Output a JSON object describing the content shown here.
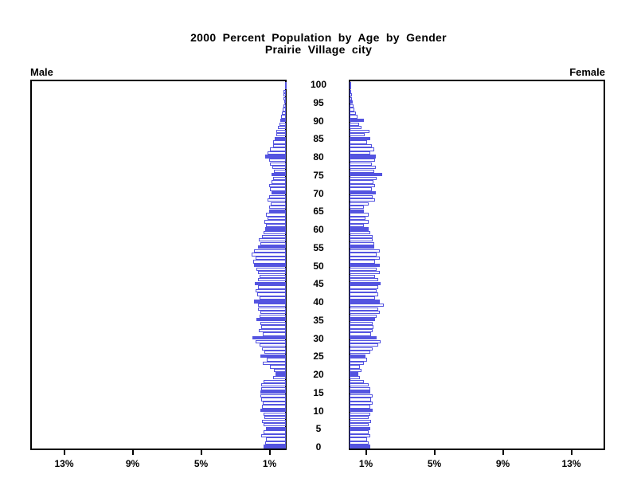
{
  "title": {
    "line1": "2000 Percent Population by Age by Gender",
    "line2": "Prairie Village city"
  },
  "labels": {
    "male": "Male",
    "female": "Female"
  },
  "colors": {
    "bar_blue": "#5454E0",
    "axis_black": "#000000",
    "background": "#FFFFFF"
  },
  "chart_data": {
    "type": "bar",
    "subtype": "population-pyramid",
    "title": "2000 Percent Population by Age by Gender",
    "subtitle": "Prairie Village city",
    "unit": "percent of total population, single-year age bins",
    "legend_position": "none",
    "grid": false,
    "style_note": "bars for ages divisible by 5 are solid blue; all other bars are white with blue outline; male bars grow leftward, female bars grow rightward",
    "age_axis": {
      "min": 0,
      "max": 100,
      "tick_interval": 5,
      "tick_labels": [
        0,
        5,
        10,
        15,
        20,
        25,
        30,
        35,
        40,
        45,
        50,
        55,
        60,
        65,
        70,
        75,
        80,
        85,
        90,
        95,
        100
      ]
    },
    "pct_axis": {
      "max": 15,
      "ticks": [
        {
          "value": 1,
          "label": "1%"
        },
        {
          "value": 5,
          "label": "5%"
        },
        {
          "value": 9,
          "label": "9%"
        },
        {
          "value": 13,
          "label": "13%"
        }
      ]
    },
    "series": [
      {
        "name": "Male",
        "side": "left",
        "values_by_age": [
          1.3,
          1.2,
          1.15,
          1.45,
          1.3,
          1.15,
          1.3,
          1.4,
          1.25,
          1.3,
          1.5,
          1.4,
          1.35,
          1.45,
          1.5,
          1.5,
          1.45,
          1.45,
          1.3,
          0.75,
          0.6,
          0.7,
          0.95,
          1.35,
          1.1,
          1.48,
          1.25,
          1.4,
          1.55,
          1.75,
          1.95,
          1.35,
          1.6,
          1.43,
          1.48,
          1.71,
          1.52,
          1.48,
          1.62,
          1.62,
          1.86,
          1.52,
          1.67,
          1.76,
          1.62,
          1.81,
          1.62,
          1.52,
          1.62,
          1.71,
          1.86,
          1.9,
          1.76,
          2.0,
          1.86,
          1.62,
          1.48,
          1.57,
          1.38,
          1.29,
          1.19,
          1.14,
          1.24,
          1.05,
          1.14,
          1.0,
          1.0,
          0.9,
          1.05,
          1.0,
          0.86,
          0.95,
          1.0,
          0.86,
          0.76,
          0.86,
          0.71,
          0.8,
          0.95,
          1.0,
          1.19,
          1.05,
          0.95,
          0.76,
          0.76,
          0.67,
          0.57,
          0.57,
          0.48,
          0.38,
          0.33,
          0.29,
          0.24,
          0.19,
          0.14,
          0.1,
          0.14,
          0.14,
          0.14,
          0.05,
          0.05
        ]
      },
      {
        "name": "Female",
        "side": "right",
        "values_by_age": [
          1.2,
          1.1,
          1.0,
          1.2,
          1.1,
          1.2,
          1.1,
          1.27,
          1.1,
          1.2,
          1.35,
          1.2,
          1.35,
          1.27,
          1.35,
          1.2,
          1.2,
          1.1,
          0.86,
          0.62,
          0.52,
          0.7,
          0.62,
          0.86,
          1.0,
          0.95,
          1.2,
          1.35,
          1.67,
          1.83,
          1.57,
          1.27,
          1.35,
          1.4,
          1.35,
          1.5,
          1.57,
          1.75,
          1.67,
          2.0,
          1.75,
          1.5,
          1.67,
          1.57,
          1.67,
          1.83,
          1.67,
          1.5,
          1.75,
          1.57,
          1.75,
          1.5,
          1.75,
          1.57,
          1.75,
          1.43,
          1.43,
          1.35,
          1.35,
          1.2,
          1.1,
          0.86,
          1.1,
          0.95,
          1.1,
          0.86,
          0.86,
          1.1,
          1.5,
          1.35,
          1.55,
          1.3,
          1.5,
          1.4,
          1.6,
          1.9,
          1.45,
          1.55,
          1.3,
          1.5,
          1.55,
          1.2,
          1.45,
          1.3,
          1.0,
          1.2,
          0.9,
          1.15,
          0.7,
          0.55,
          0.85,
          0.45,
          0.35,
          0.3,
          0.25,
          0.2,
          0.15,
          0.12,
          0.1,
          0.06,
          0.08
        ]
      }
    ]
  }
}
